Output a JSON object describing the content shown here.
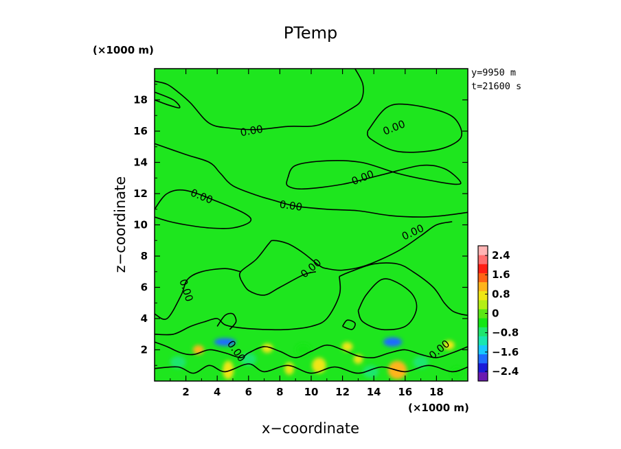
{
  "chart_data": {
    "type": "heatmap",
    "title": "PTemp",
    "xlabel": "x−coordinate",
    "ylabel": "z−coordinate",
    "x_unit": "(×1000 m)",
    "y_unit": "(×1000 m)",
    "xlim": [
      0,
      20
    ],
    "ylim": [
      0,
      20
    ],
    "x_ticks": [
      "2",
      "4",
      "6",
      "8",
      "10",
      "12",
      "14",
      "16",
      "18"
    ],
    "y_ticks": [
      "2",
      "4",
      "6",
      "8",
      "10",
      "12",
      "14",
      "16",
      "18"
    ],
    "info": [
      "y=9950 m",
      "t=21600 s"
    ],
    "colorbar": {
      "labels": [
        "2.4",
        "1.6",
        "0.8",
        "0",
        "−0.8",
        "−1.6",
        "−2.4"
      ],
      "values": [
        2.4,
        1.6,
        0.8,
        0,
        -0.8,
        -1.6,
        -2.4
      ],
      "range": [
        -2.8,
        2.8
      ],
      "colors": [
        "#6a1ab0",
        "#1a1ad8",
        "#1f6cff",
        "#19c8ff",
        "#19e6b0",
        "#1ee66e",
        "#14e614",
        "#5ae614",
        "#b4ee14",
        "#f0e614",
        "#ffb41a",
        "#ff6414",
        "#ff1e14",
        "#ff6e6e",
        "#ffb4b4"
      ]
    },
    "background_value": 0,
    "background_color": "#1ee61e",
    "contour_level": "0.00",
    "contour_labels": [
      {
        "text": "0.00",
        "x": 6.2,
        "z": 16.0,
        "angle": -10
      },
      {
        "text": "0.00",
        "x": 15.3,
        "z": 16.2,
        "angle": -22
      },
      {
        "text": "0.00",
        "x": 13.3,
        "z": 13.0,
        "angle": -22
      },
      {
        "text": "0.00",
        "x": 3.0,
        "z": 11.8,
        "angle": 22
      },
      {
        "text": "0.00",
        "x": 8.7,
        "z": 11.2,
        "angle": 8
      },
      {
        "text": "0.00",
        "x": 16.5,
        "z": 9.5,
        "angle": -25
      },
      {
        "text": "0.00",
        "x": 10.0,
        "z": 7.2,
        "angle": -40
      },
      {
        "text": "0.00",
        "x": 2.0,
        "z": 5.8,
        "angle": 72
      },
      {
        "text": "0.00",
        "x": 5.2,
        "z": 1.9,
        "angle": 55
      },
      {
        "text": "0.00",
        "x": 18.2,
        "z": 2.0,
        "angle": -40
      }
    ],
    "contours": [
      [
        [
          0,
          19.2
        ],
        [
          0.8,
          19.0
        ],
        [
          1.5,
          18.5
        ],
        [
          2.3,
          17.8
        ],
        [
          3.5,
          16.5
        ],
        [
          4.8,
          16.2
        ],
        [
          6.5,
          16.1
        ],
        [
          8.5,
          16.3
        ],
        [
          10.5,
          16.4
        ],
        [
          12.5,
          17.4
        ],
        [
          13.2,
          18.0
        ],
        [
          13.3,
          19.0
        ],
        [
          12.8,
          20.0
        ]
      ],
      [
        [
          0,
          18.5
        ],
        [
          1.2,
          18.0
        ],
        [
          1.6,
          17.5
        ],
        [
          0.8,
          17.7
        ],
        [
          0,
          18.0
        ]
      ],
      [
        [
          13.6,
          16.0
        ],
        [
          14.8,
          17.5
        ],
        [
          16.2,
          17.7
        ],
        [
          18.5,
          17.2
        ],
        [
          19.4,
          16.5
        ],
        [
          19.5,
          15.5
        ],
        [
          18.0,
          14.8
        ],
        [
          15.5,
          14.7
        ],
        [
          13.8,
          15.5
        ],
        [
          13.6,
          16.0
        ]
      ],
      [
        [
          8.5,
          13.0
        ],
        [
          9.0,
          13.8
        ],
        [
          11.0,
          14.1
        ],
        [
          13.2,
          14.0
        ],
        [
          15.5,
          13.3
        ],
        [
          17.3,
          12.9
        ],
        [
          19.2,
          12.6
        ],
        [
          19.5,
          12.8
        ],
        [
          18.5,
          13.6
        ],
        [
          17.0,
          13.8
        ],
        [
          14.5,
          13.2
        ],
        [
          12.0,
          12.6
        ],
        [
          9.5,
          12.3
        ],
        [
          8.5,
          12.5
        ],
        [
          8.5,
          13.0
        ]
      ],
      [
        [
          0,
          15.2
        ],
        [
          2.0,
          14.5
        ],
        [
          3.5,
          14.0
        ],
        [
          4.2,
          13.3
        ],
        [
          5.0,
          12.5
        ],
        [
          6.5,
          11.9
        ],
        [
          7.5,
          11.6
        ],
        [
          9.0,
          11.2
        ],
        [
          11.0,
          11.0
        ],
        [
          13.0,
          10.9
        ],
        [
          15.0,
          10.6
        ],
        [
          17.0,
          10.5
        ],
        [
          18.5,
          10.6
        ],
        [
          20.0,
          10.8
        ]
      ],
      [
        [
          0,
          11.0
        ],
        [
          0.8,
          12.0
        ],
        [
          2.0,
          12.2
        ],
        [
          4.0,
          11.5
        ],
        [
          5.8,
          10.7
        ],
        [
          6.1,
          10.2
        ],
        [
          5.0,
          9.8
        ],
        [
          3.5,
          9.8
        ],
        [
          2.0,
          10.0
        ],
        [
          1.0,
          10.2
        ],
        [
          0,
          10.5
        ]
      ],
      [
        [
          5.5,
          6.5
        ],
        [
          5.5,
          7.0
        ],
        [
          6.5,
          7.8
        ],
        [
          7.3,
          8.8
        ],
        [
          7.6,
          9.0
        ],
        [
          8.5,
          8.8
        ],
        [
          9.5,
          8.2
        ],
        [
          10.5,
          7.4
        ],
        [
          11.0,
          7.2
        ],
        [
          12.0,
          7.1
        ],
        [
          13.5,
          7.4
        ],
        [
          15.5,
          8.3
        ],
        [
          17.0,
          9.3
        ],
        [
          18.0,
          10.0
        ],
        [
          19.0,
          10.2
        ]
      ],
      [
        [
          5.5,
          6.5
        ],
        [
          6.0,
          5.8
        ],
        [
          7.0,
          5.5
        ],
        [
          8.0,
          6.0
        ],
        [
          9.5,
          6.8
        ],
        [
          10.3,
          7.0
        ]
      ],
      [
        [
          0,
          4.3
        ],
        [
          0.8,
          4.0
        ],
        [
          1.7,
          5.5
        ],
        [
          2.1,
          6.5
        ],
        [
          3.0,
          7.0
        ],
        [
          4.5,
          7.2
        ],
        [
          5.5,
          7.0
        ]
      ],
      [
        [
          11.8,
          6.7
        ],
        [
          11.8,
          5.5
        ],
        [
          11.0,
          4.0
        ],
        [
          10.0,
          3.5
        ],
        [
          8.5,
          3.3
        ],
        [
          7.0,
          3.3
        ],
        [
          5.5,
          3.4
        ],
        [
          4.5,
          3.6
        ],
        [
          4.0,
          4.0
        ],
        [
          3.2,
          3.8
        ],
        [
          2.3,
          3.5
        ],
        [
          1.2,
          3.0
        ],
        [
          0,
          3.0
        ]
      ],
      [
        [
          11.8,
          6.7
        ],
        [
          12.5,
          7.0
        ],
        [
          14.0,
          7.5
        ],
        [
          15.5,
          7.5
        ],
        [
          16.5,
          7.0
        ],
        [
          17.8,
          6.0
        ],
        [
          18.5,
          5.0
        ],
        [
          19.0,
          4.5
        ],
        [
          19.5,
          4.3
        ],
        [
          20.0,
          4.2
        ]
      ],
      [
        [
          13.0,
          4.5
        ],
        [
          13.5,
          5.5
        ],
        [
          14.5,
          6.5
        ],
        [
          15.5,
          6.3
        ],
        [
          16.5,
          5.5
        ],
        [
          16.7,
          4.5
        ],
        [
          16.0,
          3.5
        ],
        [
          14.5,
          3.3
        ],
        [
          13.3,
          3.8
        ],
        [
          13.0,
          4.5
        ]
      ],
      [
        [
          4.0,
          3.5
        ],
        [
          4.5,
          4.2
        ],
        [
          5.0,
          4.3
        ],
        [
          5.2,
          3.8
        ],
        [
          4.8,
          3.3
        ]
      ],
      [
        [
          12.0,
          3.5
        ],
        [
          12.3,
          3.9
        ],
        [
          12.8,
          3.7
        ],
        [
          12.6,
          3.3
        ],
        [
          12.0,
          3.5
        ]
      ],
      [
        [
          0,
          2.5
        ],
        [
          0.8,
          2.2
        ],
        [
          1.7,
          1.8
        ],
        [
          2.5,
          1.7
        ],
        [
          3.5,
          2.0
        ],
        [
          4.5,
          1.8
        ],
        [
          5.5,
          1.5
        ],
        [
          6.0,
          1.8
        ],
        [
          7.0,
          2.2
        ],
        [
          8.0,
          1.9
        ],
        [
          9.0,
          1.5
        ],
        [
          10.0,
          1.9
        ],
        [
          11.0,
          2.3
        ],
        [
          12.0,
          2.0
        ],
        [
          13.0,
          1.6
        ],
        [
          14.0,
          1.5
        ],
        [
          15.0,
          1.8
        ],
        [
          16.0,
          2.0
        ],
        [
          17.0,
          1.7
        ],
        [
          18.0,
          1.5
        ],
        [
          19.0,
          1.8
        ],
        [
          20.0,
          2.2
        ]
      ],
      [
        [
          0,
          0.8
        ],
        [
          1.5,
          0.9
        ],
        [
          2.5,
          0.5
        ],
        [
          3.5,
          1.0
        ],
        [
          4.5,
          0.6
        ],
        [
          6.0,
          1.1
        ],
        [
          7.0,
          0.6
        ],
        [
          8.5,
          1.0
        ],
        [
          10.0,
          0.5
        ],
        [
          11.5,
          0.9
        ],
        [
          13.0,
          0.5
        ],
        [
          14.5,
          0.9
        ],
        [
          16.0,
          0.6
        ],
        [
          17.5,
          1.0
        ],
        [
          19.0,
          0.6
        ],
        [
          20.0,
          0.9
        ]
      ]
    ],
    "anomalies": [
      {
        "x": 4.5,
        "z": 2.5,
        "value": -1.9,
        "rx": 0.7,
        "rz": 0.25
      },
      {
        "x": 15.2,
        "z": 2.5,
        "value": -2.0,
        "rx": 0.6,
        "rz": 0.3
      },
      {
        "x": 15.5,
        "z": 0.7,
        "value": 1.1,
        "rx": 0.6,
        "rz": 0.6
      },
      {
        "x": 4.7,
        "z": 0.7,
        "value": 0.9,
        "rx": 0.35,
        "rz": 0.6
      },
      {
        "x": 10.5,
        "z": 1.0,
        "value": 0.8,
        "rx": 0.45,
        "rz": 0.5
      },
      {
        "x": 2.8,
        "z": 2.0,
        "value": 1.2,
        "rx": 0.35,
        "rz": 0.3
      },
      {
        "x": 7.2,
        "z": 2.1,
        "value": 0.9,
        "rx": 0.35,
        "rz": 0.3
      },
      {
        "x": 12.3,
        "z": 2.2,
        "value": 0.8,
        "rx": 0.35,
        "rz": 0.3
      },
      {
        "x": 18.8,
        "z": 2.3,
        "value": 0.7,
        "rx": 0.35,
        "rz": 0.3
      },
      {
        "x": 8.6,
        "z": 0.8,
        "value": 0.7,
        "rx": 0.3,
        "rz": 0.4
      },
      {
        "x": 13.0,
        "z": 1.4,
        "value": 0.6,
        "rx": 0.3,
        "rz": 0.3
      },
      {
        "x": 1.5,
        "z": 1.2,
        "value": -0.6,
        "rx": 0.5,
        "rz": 0.4
      },
      {
        "x": 6.0,
        "z": 1.4,
        "value": -0.6,
        "rx": 0.5,
        "rz": 0.4
      },
      {
        "x": 9.5,
        "z": 2.0,
        "value": -0.5,
        "rx": 0.5,
        "rz": 0.4
      },
      {
        "x": 13.8,
        "z": 0.6,
        "value": -0.6,
        "rx": 0.5,
        "rz": 0.4
      },
      {
        "x": 17.0,
        "z": 1.2,
        "value": -0.6,
        "rx": 0.5,
        "rz": 0.4
      },
      {
        "x": 19.3,
        "z": 0.5,
        "value": -0.5,
        "rx": 0.4,
        "rz": 0.4
      }
    ]
  }
}
